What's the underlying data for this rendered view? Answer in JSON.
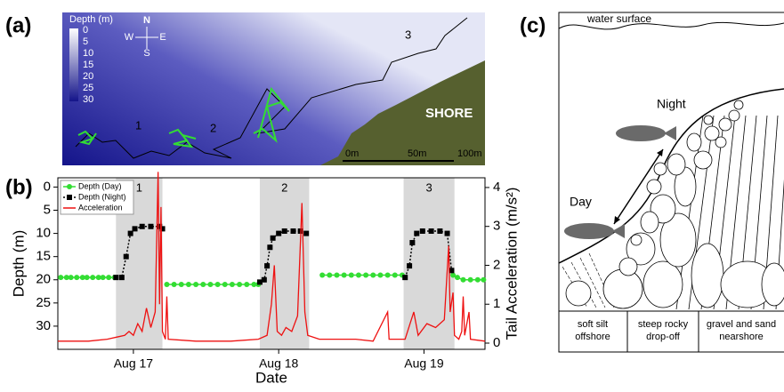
{
  "map": {
    "panel_label": "(a)",
    "colorbar_title": "Depth (m)",
    "colorbar_ticks": [
      0,
      5,
      10,
      15,
      20,
      25,
      30
    ],
    "compass": {
      "n": "N",
      "w": "W",
      "e": "E",
      "s": "S"
    },
    "site_labels": [
      "1",
      "2",
      "3"
    ],
    "shore_label": "SHORE",
    "scale_labels": [
      "0m",
      "50m",
      "100m"
    ]
  },
  "chart_data": {
    "type": "line",
    "panel_label": "(b)",
    "x_label": "Date",
    "y_label": "Depth (m)",
    "y2_label": "Tail Acceleration (m/s²)",
    "xlim": [
      16.48,
      19.42
    ],
    "xticks": [
      {
        "value": 17,
        "label": "Aug 17"
      },
      {
        "value": 18,
        "label": "Aug 18"
      },
      {
        "value": 19,
        "label": "Aug 19"
      }
    ],
    "ylim": [
      35,
      -2
    ],
    "yticks": [
      0,
      5,
      10,
      15,
      20,
      25,
      30
    ],
    "y2lim": [
      -0.16,
      4.25
    ],
    "y2ticks": [
      0,
      1,
      2,
      3,
      4
    ],
    "legend": "upper left",
    "night_periods": [
      {
        "start": 16.88,
        "end": 17.2,
        "label": "1"
      },
      {
        "start": 17.87,
        "end": 18.21,
        "label": "2"
      },
      {
        "start": 18.86,
        "end": 19.21,
        "label": "3"
      }
    ],
    "night_color": "#d9d9d9",
    "series": [
      {
        "name": "Depth (Day)",
        "color": "#33dd33",
        "marker": "circle",
        "x": [
          16.5,
          16.54,
          16.57,
          16.61,
          16.65,
          16.68,
          16.72,
          16.76,
          16.79,
          16.83,
          16.87,
          null,
          17.23,
          17.28,
          17.33,
          17.38,
          17.43,
          17.48,
          17.53,
          17.58,
          17.63,
          17.68,
          17.73,
          17.78,
          17.83,
          17.86,
          null,
          18.3,
          18.35,
          18.4,
          18.45,
          18.5,
          18.55,
          18.6,
          18.65,
          18.7,
          18.75,
          18.8,
          18.85,
          null,
          19.2,
          19.23,
          19.27,
          19.32,
          19.37,
          19.41
        ],
        "values": [
          19.5,
          19.5,
          19.5,
          19.5,
          19.5,
          19.5,
          19.5,
          19.5,
          19.5,
          19.5,
          19.5,
          null,
          21,
          21,
          21,
          21,
          21,
          21,
          21,
          21,
          21,
          21,
          21,
          21,
          21,
          21,
          null,
          19,
          19,
          19,
          19,
          19,
          19,
          19,
          19,
          19,
          19,
          19,
          19,
          null,
          19,
          19.5,
          20,
          20,
          20,
          20
        ]
      },
      {
        "name": "Depth (Night)",
        "color": "#000000",
        "marker": "square",
        "x": [
          16.88,
          16.92,
          16.95,
          16.98,
          17.01,
          17.06,
          17.12,
          17.18,
          17.2,
          null,
          17.87,
          17.9,
          17.92,
          17.94,
          17.96,
          18.0,
          18.04,
          18.1,
          18.15,
          18.19,
          null,
          18.87,
          18.9,
          18.92,
          18.95,
          18.99,
          19.05,
          19.11,
          19.16,
          19.19
        ],
        "values": [
          19.5,
          19.5,
          15,
          10,
          9,
          8.5,
          8.5,
          8.5,
          9,
          null,
          20.5,
          20,
          17,
          13,
          11,
          10,
          9.5,
          9.5,
          9.5,
          10,
          null,
          19.5,
          17,
          12,
          10,
          9.5,
          9.5,
          9.5,
          10,
          18
        ]
      },
      {
        "name": "Acceleration",
        "color": "#ee1111",
        "axis": "y2",
        "marker": "none",
        "x": [
          16.48,
          16.69,
          16.82,
          16.88,
          16.94,
          16.97,
          17.0,
          17.03,
          17.06,
          17.09,
          17.12,
          17.15,
          17.17,
          17.18,
          17.19,
          17.2,
          17.22,
          17.23,
          17.24,
          17.43,
          17.67,
          17.86,
          17.92,
          17.95,
          17.97,
          17.99,
          18.02,
          18.05,
          18.09,
          18.13,
          18.16,
          18.18,
          18.2,
          18.28,
          18.53,
          18.65,
          18.75,
          18.76,
          18.87,
          18.93,
          18.96,
          19.02,
          19.08,
          19.14,
          19.17,
          19.18,
          19.2,
          19.21,
          19.24,
          19.26,
          19.27,
          19.28,
          19.31,
          19.32,
          19.42
        ],
        "values": [
          0.05,
          0.05,
          0.1,
          0.15,
          0.2,
          0.3,
          0.2,
          0.5,
          0.3,
          0.9,
          0.4,
          0.8,
          4.4,
          1.0,
          3.5,
          0.3,
          0.1,
          1.2,
          0.1,
          0.05,
          0.05,
          0.1,
          0.2,
          1.0,
          2.0,
          0.3,
          0.2,
          0.4,
          0.3,
          0.7,
          3.6,
          0.8,
          0.2,
          0.1,
          0.1,
          0.05,
          0.8,
          0.1,
          0.1,
          0.8,
          0.2,
          0.5,
          0.4,
          0.6,
          2.5,
          0.8,
          1.3,
          0.2,
          0.1,
          0.3,
          1.2,
          0.2,
          0.8,
          0.1,
          0.05
        ]
      }
    ]
  },
  "diagram": {
    "panel_label": "(c)",
    "water_label": "water surface",
    "night_label": "Night",
    "day_label": "Day",
    "zones": [
      "soft silt offshore",
      "steep rocky drop-off",
      "gravel and sand nearshore"
    ]
  }
}
